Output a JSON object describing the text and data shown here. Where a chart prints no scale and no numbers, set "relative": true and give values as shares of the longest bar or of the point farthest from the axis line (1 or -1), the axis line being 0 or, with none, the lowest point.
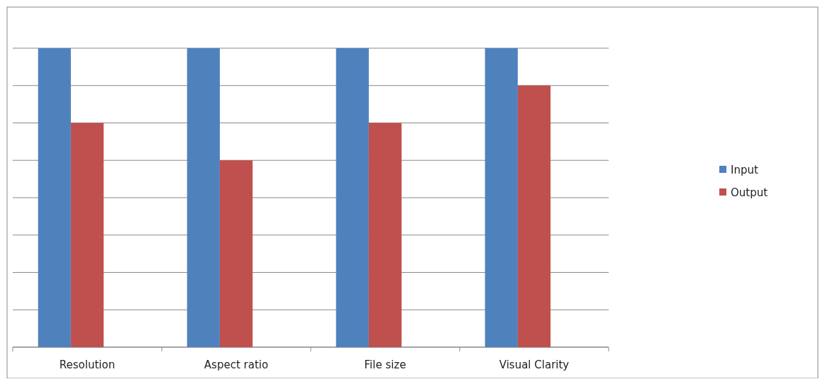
{
  "chart_data": {
    "type": "bar",
    "relative": true,
    "categories": [
      "Resolution",
      "Aspect ratio",
      "File size",
      "Visual Clarity"
    ],
    "series": [
      {
        "name": "Input",
        "color": "#4f81bd",
        "values": [
          1,
          1,
          1,
          1
        ]
      },
      {
        "name": "Output",
        "color": "#c0504d",
        "values": [
          0.75,
          0.625,
          0.75,
          0.875
        ]
      }
    ],
    "grid": "y",
    "legend": "right"
  }
}
